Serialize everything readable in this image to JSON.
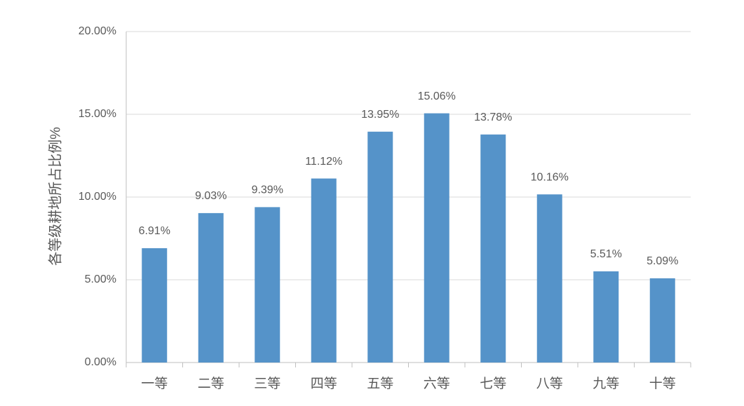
{
  "chart_data": {
    "type": "bar",
    "y_label": "各等级耕地所占比例%",
    "categories": [
      "一等",
      "二等",
      "三等",
      "四等",
      "五等",
      "六等",
      "七等",
      "八等",
      "九等",
      "十等"
    ],
    "values": [
      6.91,
      9.03,
      9.39,
      11.12,
      13.95,
      15.06,
      13.78,
      10.16,
      5.51,
      5.09
    ],
    "value_labels": [
      "6.91%",
      "9.03%",
      "9.39%",
      "11.12%",
      "13.95%",
      "15.06%",
      "13.78%",
      "10.16%",
      "5.51%",
      "5.09%"
    ],
    "color": "#5593c9",
    "ylim": [
      0,
      20
    ],
    "yticks": [
      {
        "value": 0,
        "label": "0.00%"
      },
      {
        "value": 5,
        "label": "5.00%"
      },
      {
        "value": 10,
        "label": "10.00%"
      },
      {
        "value": 15,
        "label": "15.00%"
      },
      {
        "value": 20,
        "label": "20.00%"
      }
    ],
    "grid": true
  }
}
